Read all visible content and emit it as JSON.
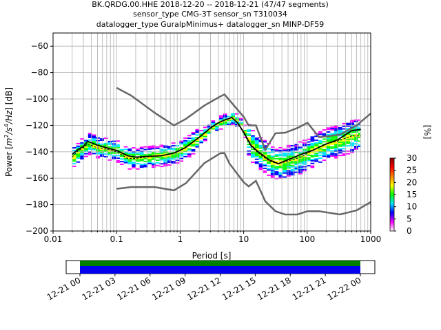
{
  "title_lines": [
    "BK.QRDG.00.HHE   2018-12-20 -- 2018-12-21  (47/47 segments)",
    "sensor_type CMG-3T sensor_sn T310034",
    "datalogger_type GuralpMinimus+ datalogger_sn MINP-DF59"
  ],
  "chart_data": {
    "type": "heatmap",
    "xlabel": "Period [s]",
    "ylabel_parts": [
      "Power [",
      "m",
      "2",
      "/s",
      "4",
      "/Hz",
      "] [dB]"
    ],
    "x_scale": "log",
    "xlim": [
      0.01,
      1000
    ],
    "ylim": [
      -200,
      -50
    ],
    "x_ticks": [
      {
        "value": 0.01,
        "label": "0.01"
      },
      {
        "value": 0.1,
        "label": "0.1"
      },
      {
        "value": 1,
        "label": "1"
      },
      {
        "value": 10,
        "label": "10"
      },
      {
        "value": 100,
        "label": "100"
      },
      {
        "value": 1000,
        "label": "1000"
      }
    ],
    "y_ticks": [
      {
        "value": -60,
        "label": "−60"
      },
      {
        "value": -80,
        "label": "−80"
      },
      {
        "value": -100,
        "label": "−100"
      },
      {
        "value": -120,
        "label": "−120"
      },
      {
        "value": -140,
        "label": "−140"
      },
      {
        "value": -160,
        "label": "−160"
      },
      {
        "value": -180,
        "label": "−180"
      },
      {
        "value": -200,
        "label": "−200"
      }
    ],
    "grid": true,
    "colorbar": {
      "label": "[%]",
      "range": [
        0,
        30
      ],
      "ticks": [
        {
          "value": 0,
          "label": "0"
        },
        {
          "value": 5,
          "label": "5"
        },
        {
          "value": 10,
          "label": "10"
        },
        {
          "value": 15,
          "label": "15"
        },
        {
          "value": 20,
          "label": "20"
        },
        {
          "value": 25,
          "label": "25"
        },
        {
          "value": 30,
          "label": "30"
        }
      ],
      "colors": [
        "#ffffff",
        "#ff00ff",
        "#0000ff",
        "#00e5ff",
        "#00ff00",
        "#ffff00",
        "#ff8000",
        "#ff0000",
        "#8b0000"
      ]
    },
    "nhnm": [
      [
        0.1,
        -91.5
      ],
      [
        0.17,
        -97.4
      ],
      [
        0.4,
        -110.5
      ],
      [
        0.8,
        -120
      ],
      [
        1.24,
        -115
      ],
      [
        2.4,
        -105
      ],
      [
        4.3,
        -98
      ],
      [
        5,
        -96.5
      ],
      [
        6,
        -101
      ],
      [
        10,
        -113.5
      ],
      [
        12,
        -120
      ],
      [
        15.6,
        -120
      ],
      [
        21.9,
        -138.5
      ],
      [
        31.6,
        -126
      ],
      [
        45,
        -125.5
      ],
      [
        70,
        -122
      ],
      [
        101,
        -118
      ],
      [
        154,
        -129
      ],
      [
        328,
        -127
      ],
      [
        600,
        -120
      ],
      [
        1000,
        -111
      ]
    ],
    "nlnm": [
      [
        0.1,
        -168
      ],
      [
        0.17,
        -166.7
      ],
      [
        0.4,
        -166.7
      ],
      [
        0.8,
        -169.2
      ],
      [
        1.24,
        -163.7
      ],
      [
        2.4,
        -148.6
      ],
      [
        4.3,
        -141.1
      ],
      [
        5,
        -141
      ],
      [
        6,
        -149
      ],
      [
        10,
        -163
      ],
      [
        12,
        -166.2
      ],
      [
        15.6,
        -162
      ],
      [
        21.9,
        -177.5
      ],
      [
        31.6,
        -185
      ],
      [
        45,
        -187.5
      ],
      [
        70,
        -187.5
      ],
      [
        101,
        -185
      ],
      [
        154,
        -185
      ],
      [
        328,
        -187.5
      ],
      [
        600,
        -184.4
      ],
      [
        1000,
        -178
      ]
    ],
    "mean": [
      [
        0.02,
        -142
      ],
      [
        0.025,
        -138
      ],
      [
        0.03,
        -136
      ],
      [
        0.035,
        -132
      ],
      [
        0.05,
        -135
      ],
      [
        0.07,
        -137
      ],
      [
        0.1,
        -139
      ],
      [
        0.15,
        -143
      ],
      [
        0.2,
        -144
      ],
      [
        0.3,
        -143.5
      ],
      [
        0.5,
        -143
      ],
      [
        0.8,
        -141
      ],
      [
        1.2,
        -137
      ],
      [
        2,
        -129
      ],
      [
        3,
        -122
      ],
      [
        4,
        -118
      ],
      [
        5,
        -116
      ],
      [
        6.5,
        -114
      ],
      [
        8,
        -118
      ],
      [
        10,
        -125
      ],
      [
        13,
        -135
      ],
      [
        17,
        -140
      ],
      [
        25,
        -146
      ],
      [
        35,
        -149
      ],
      [
        50,
        -146
      ],
      [
        80,
        -142
      ],
      [
        120,
        -139
      ],
      [
        200,
        -134
      ],
      [
        300,
        -131
      ],
      [
        500,
        -124
      ],
      [
        700,
        -123
      ]
    ],
    "mode": [
      [
        0.02,
        -144
      ],
      [
        0.025,
        -139
      ],
      [
        0.03,
        -137
      ],
      [
        0.035,
        -134
      ],
      [
        0.05,
        -137
      ],
      [
        0.07,
        -138
      ],
      [
        0.1,
        -140
      ],
      [
        0.15,
        -145
      ],
      [
        0.2,
        -145
      ],
      [
        0.3,
        -144
      ],
      [
        0.5,
        -143
      ],
      [
        0.8,
        -141
      ],
      [
        1.2,
        -137
      ],
      [
        2,
        -129
      ],
      [
        3,
        -122
      ],
      [
        4,
        -118
      ],
      [
        5,
        -116
      ],
      [
        6.5,
        -114
      ],
      [
        8,
        -118
      ],
      [
        10,
        -126
      ],
      [
        13,
        -136
      ],
      [
        17,
        -141
      ],
      [
        25,
        -147
      ],
      [
        35,
        -149
      ],
      [
        50,
        -147
      ],
      [
        80,
        -144
      ],
      [
        120,
        -139
      ],
      [
        200,
        -134
      ],
      [
        300,
        -132
      ],
      [
        500,
        -128
      ],
      [
        700,
        -128
      ]
    ],
    "timeline": {
      "tick_labels": [
        "12-21 00",
        "12-21 03",
        "12-21 06",
        "12-21 09",
        "12-21 12",
        "12-21 15",
        "12-21 18",
        "12-21 21",
        "12-22 00"
      ],
      "data_color": "#0000ee",
      "gap_color": "#008000"
    }
  }
}
